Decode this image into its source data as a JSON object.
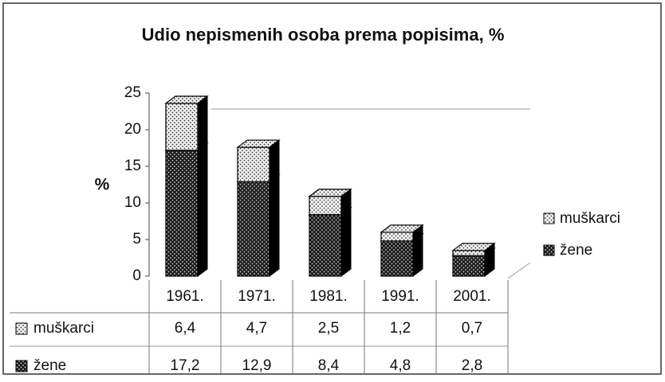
{
  "chart_data": {
    "type": "bar",
    "stacked": true,
    "title": "Udio nepismenih osoba prema popisima, %",
    "ylabel": "%",
    "categories": [
      "1961.",
      "1971.",
      "1981.",
      "1991.",
      "2001."
    ],
    "series": [
      {
        "name": "muškarci",
        "color": "#e6e6e6",
        "values": [
          6.4,
          4.7,
          2.5,
          1.2,
          0.7
        ],
        "value_labels": [
          "6,4",
          "4,7",
          "2,5",
          "1,2",
          "0,7"
        ]
      },
      {
        "name": "žene",
        "color": "#222222",
        "values": [
          17.2,
          12.9,
          8.4,
          4.8,
          2.8
        ],
        "value_labels": [
          "17,2",
          "12,9",
          "8,4",
          "4,8",
          "2,8"
        ]
      }
    ],
    "ylim": [
      0,
      25
    ],
    "yticks": [
      0,
      5,
      10,
      15,
      20,
      25
    ],
    "grid": false,
    "legend": "right"
  }
}
